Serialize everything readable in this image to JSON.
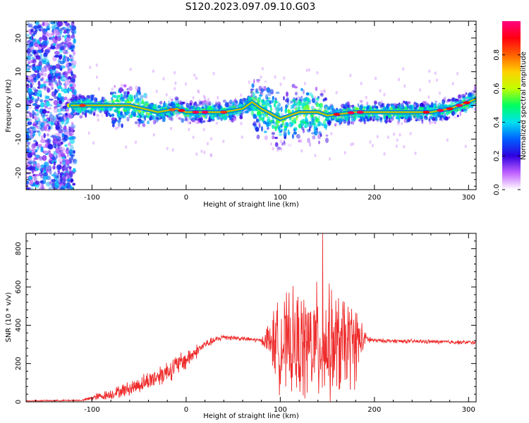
{
  "title": "S120.2023.097.09.10.G03",
  "chart_data": [
    {
      "type": "heatmap",
      "xlabel": "Height of straight line (km)",
      "ylabel": "Frequency (Hz)",
      "xlim": [
        -170,
        308
      ],
      "ylim": [
        -25,
        25
      ],
      "xticks": [
        -100,
        0,
        100,
        200,
        300
      ],
      "yticks": [
        -20,
        -10,
        0,
        10,
        20
      ],
      "colorbar": {
        "label": "Normalized spectral amplitude",
        "range": [
          0,
          1
        ],
        "ticks": [
          "0.0",
          "0.2",
          "0.4",
          "0.6",
          "0.8"
        ],
        "colors": [
          "#ffffff",
          "#c060ff",
          "#3000e0",
          "#0060ff",
          "#00e0f0",
          "#00ff60",
          "#c0ff00",
          "#ffd000",
          "#ff6000",
          "#ff0010",
          "#ff0080"
        ]
      },
      "ridge": {
        "description_points_x": [
          -120,
          -80,
          -60,
          -45,
          -30,
          -10,
          0,
          20,
          40,
          60,
          70,
          80,
          100,
          120,
          140,
          150,
          180,
          200,
          230,
          260,
          280,
          300,
          308
        ],
        "frequency_hz": [
          0,
          0,
          0,
          -1,
          -2,
          -1,
          -2,
          -2,
          -2,
          -1,
          1,
          -1,
          -4,
          -2,
          -2,
          -3,
          -2,
          -2,
          -2,
          -2,
          -1,
          1,
          2
        ]
      }
    },
    {
      "type": "line",
      "xlabel": "Height of straight line (km)",
      "ylabel": "SNR (10 * v/v)",
      "xlim": [
        -170,
        308
      ],
      "ylim": [
        0,
        880
      ],
      "xticks": [
        -100,
        0,
        100,
        200,
        300
      ],
      "yticks": [
        0,
        200,
        400,
        600,
        800
      ],
      "color": "#ee2a2a",
      "envelope": {
        "x": [
          -170,
          -110,
          -100,
          -80,
          -60,
          -40,
          -20,
          0,
          20,
          40,
          60,
          80,
          90,
          100,
          120,
          140,
          160,
          180,
          190,
          200,
          250,
          308
        ],
        "mean": [
          5,
          8,
          20,
          40,
          70,
          110,
          160,
          220,
          300,
          340,
          330,
          320,
          320,
          300,
          290,
          300,
          290,
          310,
          330,
          320,
          315,
          310
        ],
        "spread": [
          3,
          4,
          15,
          25,
          35,
          45,
          55,
          50,
          20,
          15,
          10,
          10,
          120,
          220,
          260,
          280,
          260,
          200,
          30,
          10,
          10,
          10
        ]
      },
      "peak": {
        "x": 145,
        "y": 880
      }
    }
  ]
}
